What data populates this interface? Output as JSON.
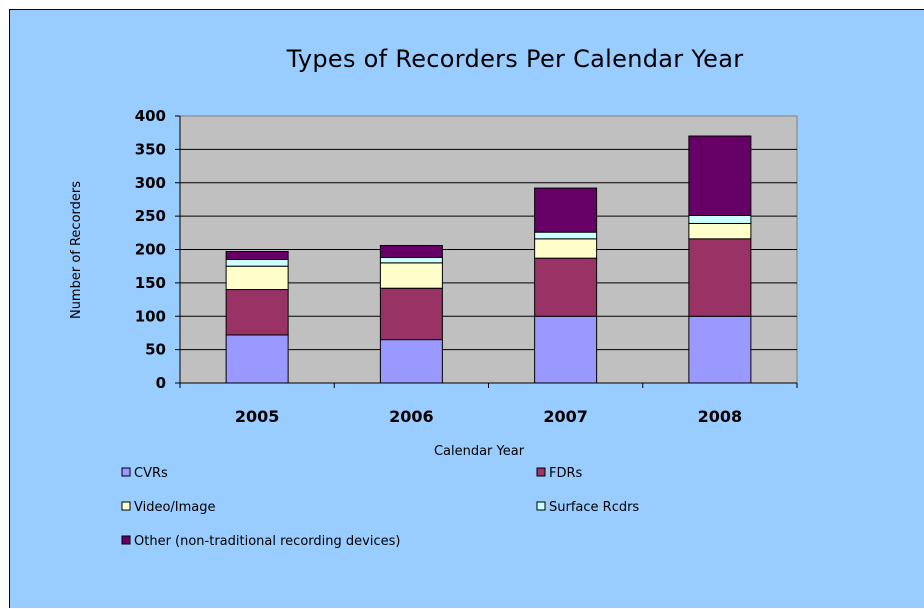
{
  "chart_data": {
    "type": "bar",
    "stacked": true,
    "title": "Types of Recorders Per Calendar Year",
    "xlabel": "Calendar Year",
    "ylabel": "Number of Recorders",
    "categories": [
      "2005",
      "2006",
      "2007",
      "2008"
    ],
    "ylim": [
      0,
      400
    ],
    "yticks": [
      0,
      50,
      100,
      150,
      200,
      250,
      300,
      350,
      400
    ],
    "grid": "horizontal",
    "legend_position": "bottom",
    "plot_background": "#c0c0c0",
    "page_background": "#99ccff",
    "series": [
      {
        "name": "CVRs",
        "color": "#9999ff",
        "values": [
          72,
          65,
          100,
          100
        ]
      },
      {
        "name": "FDRs",
        "color": "#993366",
        "values": [
          68,
          77,
          87,
          116
        ]
      },
      {
        "name": "Video/Image",
        "color": "#ffffcc",
        "values": [
          35,
          38,
          29,
          23
        ]
      },
      {
        "name": "Surface Rcdrs",
        "color": "#ccffff",
        "values": [
          10,
          8,
          10,
          12
        ]
      },
      {
        "name": "Other (non-traditional recording devices)",
        "color": "#660066",
        "values": [
          12,
          18,
          66,
          119
        ]
      }
    ]
  }
}
